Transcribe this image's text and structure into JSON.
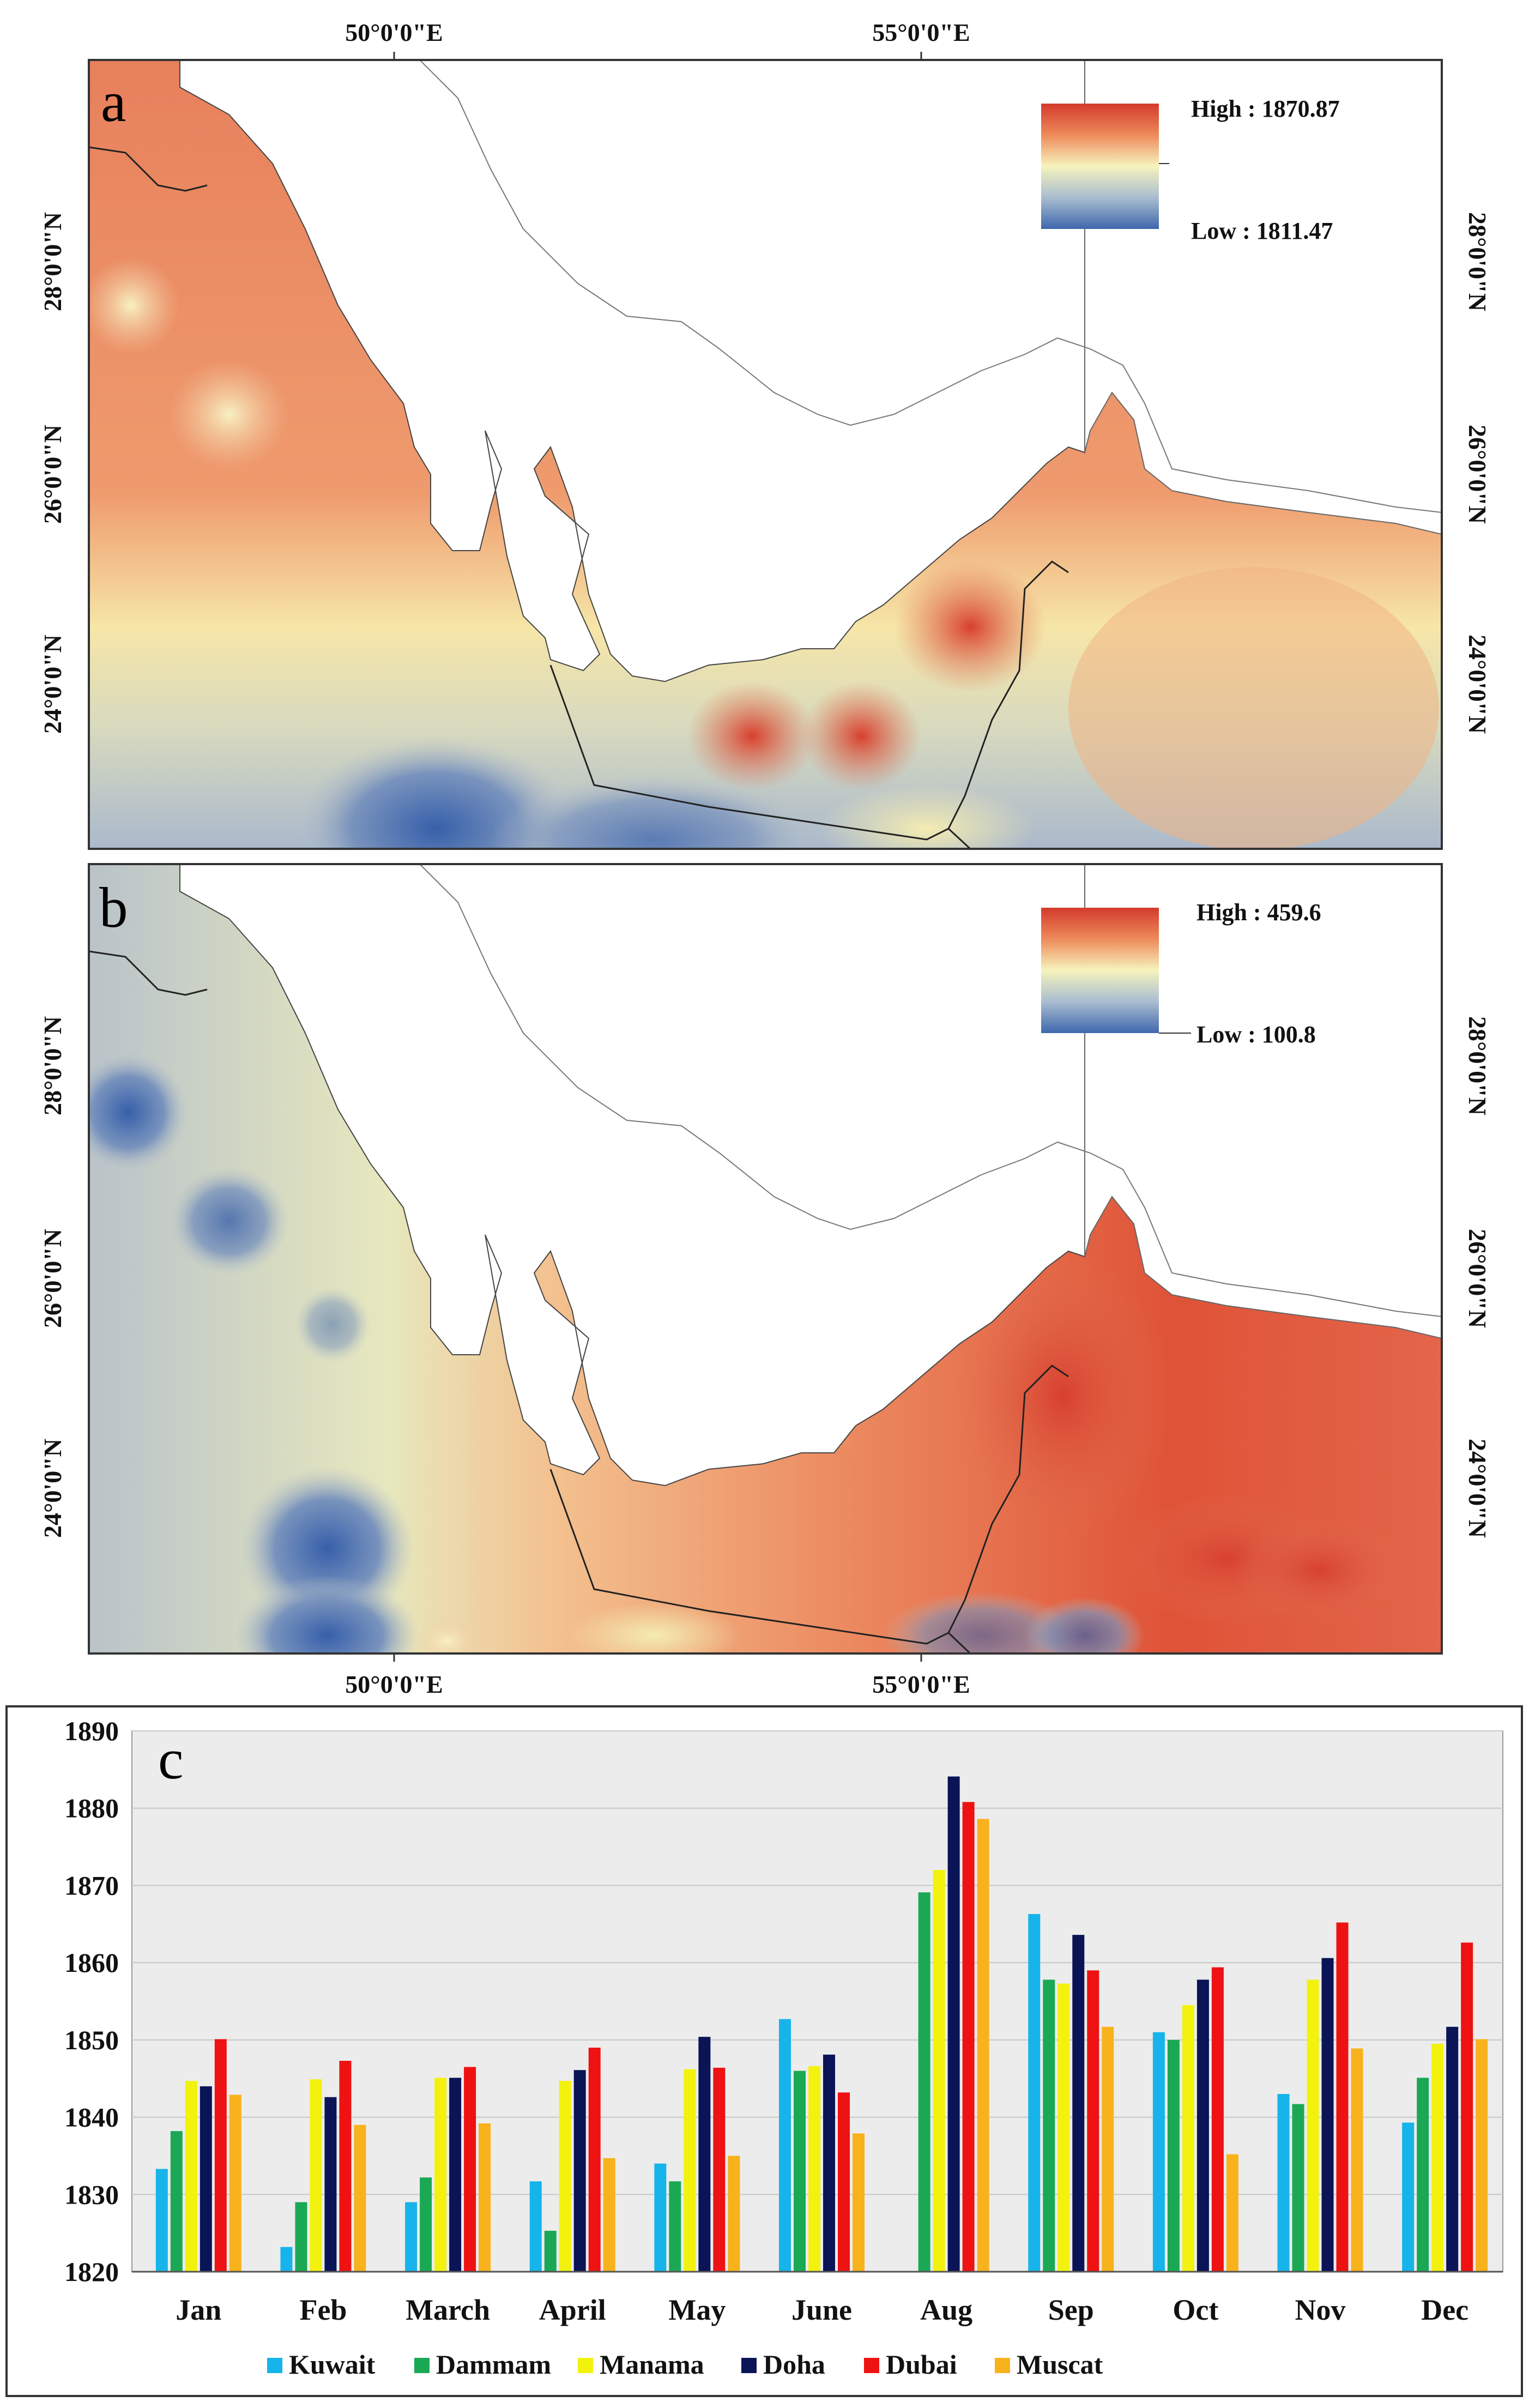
{
  "panels": {
    "a": {
      "letter": "a",
      "legend_high": "High : 1870.87",
      "legend_low": "Low : 1811.47"
    },
    "b": {
      "letter": "b",
      "legend_high": "High : 459.6",
      "legend_low": "Low : 100.8"
    }
  },
  "map_axes": {
    "x_ticks": [
      "50°0'0\"E",
      "55°0'0\"E"
    ],
    "y_ticks": [
      "28°0'0\"N",
      "26°0'0\"N",
      "24°0'0\"N"
    ]
  },
  "colors": {
    "map_high": "#d33a2c",
    "map_mid": "#f6f3bd",
    "map_low": "#4d72b0",
    "land_none": "#ffffff",
    "chart_bg": "#ececec"
  },
  "chart_data": {
    "type": "bar",
    "panel_letter": "c",
    "categories": [
      "Jan",
      "Feb",
      "March",
      "April",
      "May",
      "June",
      "Aug",
      "Sep",
      "Oct",
      "Nov",
      "Dec"
    ],
    "ylim": [
      1820,
      1890
    ],
    "yticks": [
      1820,
      1830,
      1840,
      1850,
      1860,
      1870,
      1880,
      1890
    ],
    "grid": true,
    "legend_position": "bottom",
    "series": [
      {
        "name": "Kuwait",
        "color": "#16b4ea",
        "values": [
          1833.3,
          1823.2,
          1829,
          1831.7,
          1834,
          1852.7,
          null,
          1866.3,
          1851,
          1843,
          1839.3
        ]
      },
      {
        "name": "Dammam",
        "color": "#1aa855",
        "values": [
          1838.2,
          1829,
          1832.2,
          1825.3,
          1831.7,
          1846,
          1869.1,
          1857.8,
          1850,
          1841.7,
          1845.1
        ]
      },
      {
        "name": "Manama",
        "color": "#f2f20e",
        "values": [
          1844.7,
          1844.9,
          1845.1,
          1844.7,
          1846.2,
          1846.6,
          1872,
          1857.3,
          1854.5,
          1857.8,
          1849.5
        ]
      },
      {
        "name": "Doha",
        "color": "#0a1456",
        "values": [
          1844,
          1842.6,
          1845.1,
          1846.1,
          1850.4,
          1848.1,
          1884.1,
          1863.6,
          1857.8,
          1860.6,
          1851.7
        ]
      },
      {
        "name": "Dubai",
        "color": "#ee1212",
        "values": [
          1850.1,
          1847.3,
          1846.5,
          1849,
          1846.4,
          1843.2,
          1880.8,
          1859,
          1859.4,
          1865.2,
          1862.6
        ]
      },
      {
        "name": "Muscat",
        "color": "#f8b21c",
        "values": [
          1842.9,
          1839,
          1839.2,
          1834.7,
          1835,
          1837.9,
          1878.6,
          1851.7,
          1835.2,
          1848.9,
          1850.1
        ]
      }
    ]
  }
}
